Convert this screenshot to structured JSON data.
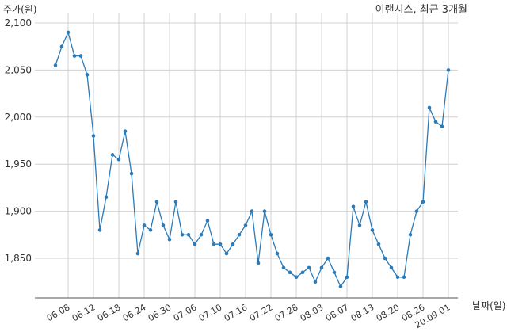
{
  "chart_data": {
    "type": "line",
    "title": "이랜시스, 최근 3개월",
    "ylabel": "주가(원)",
    "xlabel": "날짜(일)",
    "ylim": [
      1805,
      2100
    ],
    "yticks": [
      2100,
      2050,
      2000,
      1950,
      1900,
      1850
    ],
    "ytick_labels": [
      "2,100",
      "2,050",
      "2,000",
      "1,950",
      "1,900",
      "1,850"
    ],
    "xtick_labels": [
      "06.08",
      "06.12",
      "06.18",
      "06.24",
      "06.30",
      "07.06",
      "07.10",
      "07.16",
      "07.22",
      "07.28",
      "08.03",
      "08.07",
      "08.13",
      "08.20",
      "08.26",
      "20.09.01"
    ],
    "xtick_index": [
      2,
      6,
      10,
      14,
      18,
      22,
      26,
      30,
      34,
      38,
      42,
      46,
      50,
      54,
      58,
      62
    ],
    "grid": true,
    "color": "#2b7bb9",
    "series": [
      {
        "values": [
          2055,
          2075,
          2090,
          2065,
          2065,
          2045,
          1980,
          1880,
          1915,
          1960,
          1955,
          1985,
          1940,
          1855,
          1885,
          1880,
          1910,
          1885,
          1870,
          1910,
          1875,
          1875,
          1865,
          1875,
          1890,
          1865,
          1865,
          1855,
          1865,
          1875,
          1885,
          1900,
          1845,
          1900,
          1875,
          1855,
          1840,
          1835,
          1830,
          1835,
          1840,
          1825,
          1840,
          1850,
          1835,
          1820,
          1830,
          1905,
          1885,
          1910,
          1880,
          1865,
          1850,
          1840,
          1830,
          1830,
          1875,
          1900,
          1910,
          2010,
          1995,
          1990,
          2050
        ]
      }
    ]
  }
}
